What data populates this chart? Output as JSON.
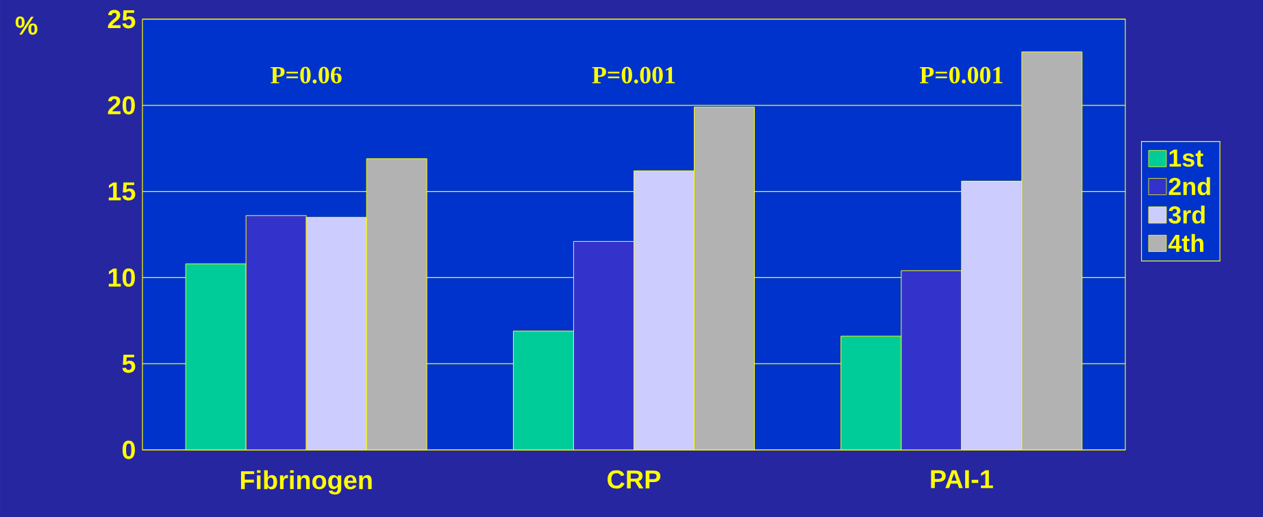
{
  "chart_data": {
    "type": "bar",
    "ylabel": "%",
    "categories": [
      "Fibrinogen",
      "CRP",
      "PAI-1"
    ],
    "series": [
      {
        "name": "1st",
        "color": "#00cc99",
        "values": [
          10.8,
          6.9,
          6.6
        ]
      },
      {
        "name": "2nd",
        "color": "#3333cc",
        "values": [
          13.6,
          12.1,
          10.4
        ]
      },
      {
        "name": "3rd",
        "color": "#ccccff",
        "values": [
          13.5,
          16.2,
          15.6
        ]
      },
      {
        "name": "4th",
        "color": "#b2b2b2",
        "values": [
          16.9,
          19.9,
          23.1
        ]
      }
    ],
    "ylim": [
      0,
      25
    ],
    "yticks": [
      0,
      5,
      10,
      15,
      20,
      25
    ],
    "grid": "y",
    "legend": "right",
    "annotations": [
      "P=0.06",
      "P=0.001",
      "P=0.001"
    ]
  }
}
